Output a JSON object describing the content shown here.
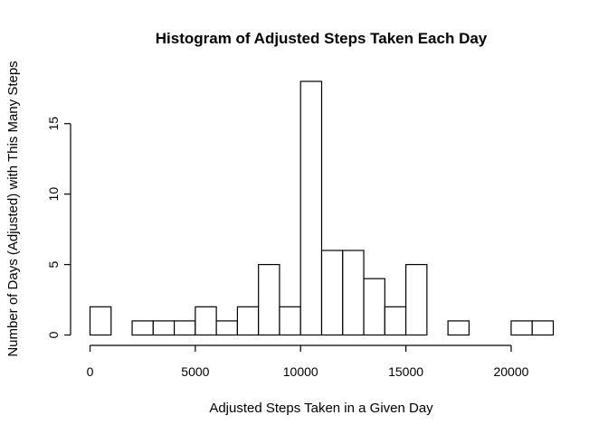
{
  "chart_data": {
    "type": "bar",
    "title": "Histogram of Adjusted Steps Taken Each Day",
    "xlabel": "Adjusted Steps Taken in a Given Day",
    "ylabel": "Number of Days (Adjusted) with This Many Steps",
    "bin_width": 1000,
    "bins": [
      {
        "x0": 0,
        "x1": 1000,
        "count": 2
      },
      {
        "x0": 1000,
        "x1": 2000,
        "count": 0
      },
      {
        "x0": 2000,
        "x1": 3000,
        "count": 1
      },
      {
        "x0": 3000,
        "x1": 4000,
        "count": 1
      },
      {
        "x0": 4000,
        "x1": 5000,
        "count": 1
      },
      {
        "x0": 5000,
        "x1": 6000,
        "count": 2
      },
      {
        "x0": 6000,
        "x1": 7000,
        "count": 1
      },
      {
        "x0": 7000,
        "x1": 8000,
        "count": 2
      },
      {
        "x0": 8000,
        "x1": 9000,
        "count": 5
      },
      {
        "x0": 9000,
        "x1": 10000,
        "count": 2
      },
      {
        "x0": 10000,
        "x1": 11000,
        "count": 18
      },
      {
        "x0": 11000,
        "x1": 12000,
        "count": 6
      },
      {
        "x0": 12000,
        "x1": 13000,
        "count": 6
      },
      {
        "x0": 13000,
        "x1": 14000,
        "count": 4
      },
      {
        "x0": 14000,
        "x1": 15000,
        "count": 2
      },
      {
        "x0": 15000,
        "x1": 16000,
        "count": 5
      },
      {
        "x0": 16000,
        "x1": 17000,
        "count": 0
      },
      {
        "x0": 17000,
        "x1": 18000,
        "count": 1
      },
      {
        "x0": 18000,
        "x1": 19000,
        "count": 0
      },
      {
        "x0": 19000,
        "x1": 20000,
        "count": 0
      },
      {
        "x0": 20000,
        "x1": 21000,
        "count": 1
      },
      {
        "x0": 21000,
        "x1": 22000,
        "count": 1
      }
    ],
    "xlim": [
      0,
      22000
    ],
    "ylim": [
      0,
      18
    ],
    "x_ticks": [
      0,
      5000,
      10000,
      15000,
      20000
    ],
    "y_ticks": [
      0,
      5,
      10,
      15
    ],
    "grid": false
  }
}
